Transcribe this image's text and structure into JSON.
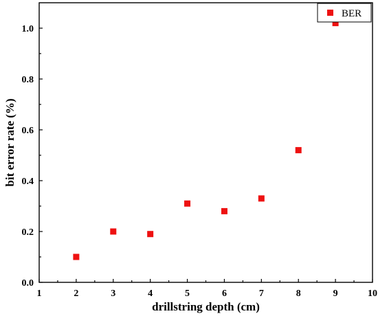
{
  "chart_data": {
    "type": "scatter",
    "title": "",
    "xlabel": "drillstring depth (cm)",
    "ylabel": "bit error rate (%)",
    "xlim": [
      1,
      10
    ],
    "ylim": [
      0,
      1.1
    ],
    "x_ticks": [
      "1",
      "2",
      "3",
      "4",
      "5",
      "6",
      "7",
      "8",
      "9",
      "10"
    ],
    "y_ticks": [
      "0.0",
      "0.2",
      "0.4",
      "0.6",
      "0.8",
      "1.0"
    ],
    "legend_position": "top-right",
    "grid": false,
    "series": [
      {
        "name": "BER",
        "color": "#ee1111",
        "marker": "square",
        "x": [
          2,
          3,
          4,
          5,
          6,
          7,
          8,
          9
        ],
        "y": [
          0.1,
          0.2,
          0.19,
          0.31,
          0.28,
          0.33,
          0.52,
          1.02
        ]
      }
    ]
  }
}
